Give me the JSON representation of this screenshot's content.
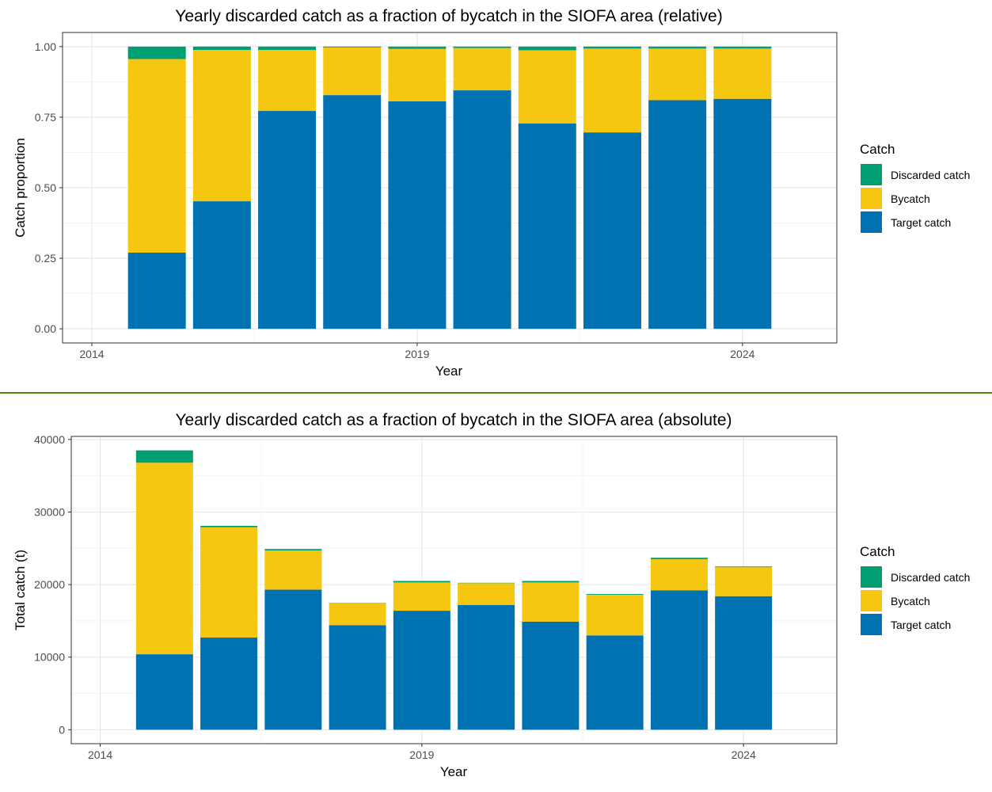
{
  "divider_color": "#4d8a00",
  "chart_data": [
    {
      "type": "bar",
      "stacked": true,
      "title": "Yearly discarded catch as a fraction of bycatch in the SIOFA area (relative)",
      "xlabel": "Year",
      "ylabel": "Catch proportion",
      "x": [
        2015,
        2016,
        2017,
        2018,
        2019,
        2020,
        2021,
        2022,
        2023,
        2024
      ],
      "xlim": [
        2013.55,
        2025.45
      ],
      "ylim": [
        -0.05,
        1.05
      ],
      "x_ticks": [
        2014,
        2019,
        2024
      ],
      "x_tick_labels": [
        "2014",
        "2019",
        "2024"
      ],
      "y_ticks": [
        0,
        0.25,
        0.5,
        0.75,
        1
      ],
      "y_tick_labels": [
        "0.00",
        "0.25",
        "0.50",
        "0.75",
        "1.00"
      ],
      "grid": true,
      "legend": {
        "title": "Catch",
        "placement": "right"
      },
      "series": [
        {
          "name": "Target catch",
          "color": "#0072B2",
          "values": [
            0.27,
            0.452,
            0.772,
            0.828,
            0.806,
            0.845,
            0.728,
            0.696,
            0.81,
            0.815
          ]
        },
        {
          "name": "Bycatch",
          "color": "#F5C710",
          "values": [
            0.686,
            0.536,
            0.216,
            0.169,
            0.186,
            0.15,
            0.259,
            0.297,
            0.183,
            0.178
          ]
        },
        {
          "name": "Discarded catch",
          "color": "#009E73",
          "values": [
            0.044,
            0.012,
            0.012,
            0.003,
            0.008,
            0.005,
            0.013,
            0.007,
            0.007,
            0.007
          ]
        }
      ]
    },
    {
      "type": "bar",
      "stacked": true,
      "title": "Yearly discarded catch as a fraction of bycatch in the SIOFA area (absolute)",
      "xlabel": "Year",
      "ylabel": "Total catch (t)",
      "x": [
        2015,
        2016,
        2017,
        2018,
        2019,
        2020,
        2021,
        2022,
        2023,
        2024
      ],
      "xlim": [
        2013.55,
        2025.45
      ],
      "ylim": [
        -1925,
        40425
      ],
      "x_ticks": [
        2014,
        2019,
        2024
      ],
      "x_tick_labels": [
        "2014",
        "2019",
        "2024"
      ],
      "y_ticks": [
        0,
        10000,
        20000,
        30000,
        40000
      ],
      "y_tick_labels": [
        "0",
        "10000",
        "20000",
        "30000",
        "40000"
      ],
      "grid": true,
      "legend": {
        "title": "Catch",
        "placement": "right"
      },
      "series": [
        {
          "name": "Target catch",
          "color": "#0072B2",
          "values": [
            10400,
            12700,
            19300,
            14400,
            16400,
            17200,
            14900,
            13000,
            19200,
            18400
          ]
        },
        {
          "name": "Bycatch",
          "color": "#F5C710",
          "values": [
            26400,
            15200,
            5400,
            3000,
            3900,
            3000,
            5400,
            5600,
            4300,
            4000
          ]
        },
        {
          "name": "Discarded catch",
          "color": "#009E73",
          "values": [
            1700,
            200,
            200,
            50,
            200,
            50,
            200,
            100,
            200,
            100
          ]
        }
      ]
    }
  ]
}
